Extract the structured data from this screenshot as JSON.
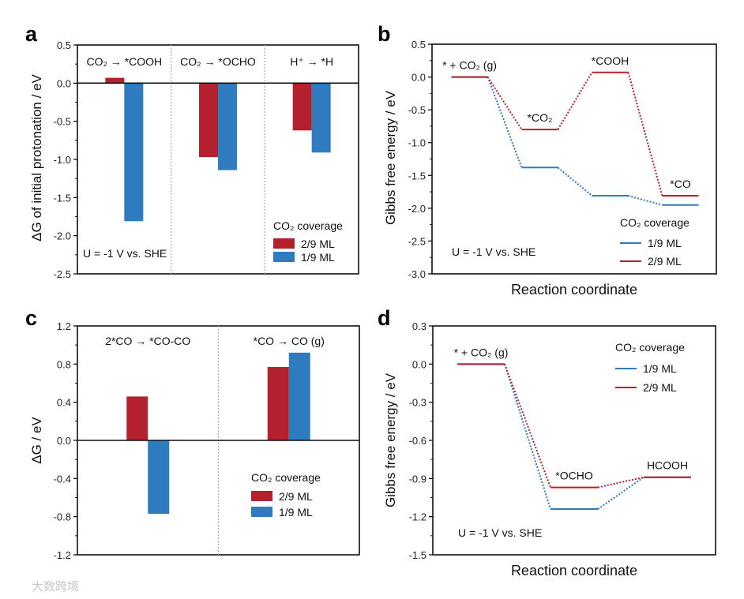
{
  "watermark": "大数跨境",
  "chart_data": [
    {
      "panel": "a",
      "type": "bar",
      "categories": [
        "CO₂ → *COOH",
        "CO₂ → *OCHO",
        "H⁺ → *H"
      ],
      "series": [
        {
          "name": "2/9 ML",
          "color": "#b5202e",
          "values": [
            0.07,
            -0.97,
            -0.62
          ]
        },
        {
          "name": "1/9 ML",
          "color": "#2e7bbf",
          "values": [
            -1.81,
            -1.14,
            -0.91
          ]
        }
      ],
      "ylabel": "ΔG of initial protonation / eV",
      "xlabel": "",
      "ylim": [
        -2.5,
        0.5
      ],
      "yticks": [
        "0.5",
        "0.0",
        "-0.5",
        "-1.0",
        "-1.5",
        "-2.0",
        "-2.5"
      ],
      "legend_title": "CO₂ coverage",
      "legend": "bottom-right",
      "annotation": "U = -1 V vs. SHE"
    },
    {
      "panel": "b",
      "type": "line",
      "states": [
        "* + CO₂ (g)",
        "*CO₂",
        "*COOH",
        "*CO"
      ],
      "series": [
        {
          "name": "1/9 ML",
          "color": "#2e7bbf",
          "values": [
            0,
            -1.38,
            -1.81,
            -1.95
          ]
        },
        {
          "name": "2/9 ML",
          "color": "#b5202e",
          "values": [
            0,
            -0.8,
            0.07,
            -1.81
          ]
        }
      ],
      "ylabel": "Gibbs free energy / eV",
      "xlabel": "Reaction coordinate",
      "ylim": [
        -3.0,
        0.5
      ],
      "yticks": [
        "0.5",
        "0.0",
        "-0.5",
        "-1.0",
        "-1.5",
        "-2.0",
        "-2.5",
        "-3.0"
      ],
      "legend_title": "CO₂ coverage",
      "legend": "bottom-right",
      "annotation": "U = -1 V vs. SHE"
    },
    {
      "panel": "c",
      "type": "bar",
      "categories": [
        "2*CO → *CO-CO",
        "*CO → CO (g)"
      ],
      "series": [
        {
          "name": "2/9 ML",
          "color": "#b5202e",
          "values": [
            0.46,
            0.77
          ]
        },
        {
          "name": "1/9 ML",
          "color": "#2e7bbf",
          "values": [
            -0.77,
            0.92
          ]
        }
      ],
      "ylabel": "ΔG / eV",
      "xlabel": "",
      "ylim": [
        -1.2,
        1.2
      ],
      "yticks": [
        "1.2",
        "0.8",
        "0.4",
        "0.0",
        "-0.4",
        "-0.8",
        "-1.2"
      ],
      "legend_title": "CO₂ coverage",
      "legend": "bottom-right",
      "annotation": ""
    },
    {
      "panel": "d",
      "type": "line",
      "states": [
        "* + CO₂ (g)",
        "*OCHO",
        "HCOOH"
      ],
      "series": [
        {
          "name": "1/9 ML",
          "color": "#2e7bbf",
          "values": [
            0,
            -1.14,
            -0.89
          ]
        },
        {
          "name": "2/9 ML",
          "color": "#b5202e",
          "values": [
            0,
            -0.97,
            -0.89
          ]
        }
      ],
      "ylabel": "Gibbs free energy / eV",
      "xlabel": "Reaction coordinate",
      "ylim": [
        -1.5,
        0.3
      ],
      "yticks": [
        "0.3",
        "0.0",
        "-0.3",
        "-0.6",
        "-0.9",
        "-1.2",
        "-1.5"
      ],
      "legend_title": "CO₂ coverage",
      "legend": "top-right",
      "annotation": "U = -1 V vs. SHE"
    }
  ]
}
